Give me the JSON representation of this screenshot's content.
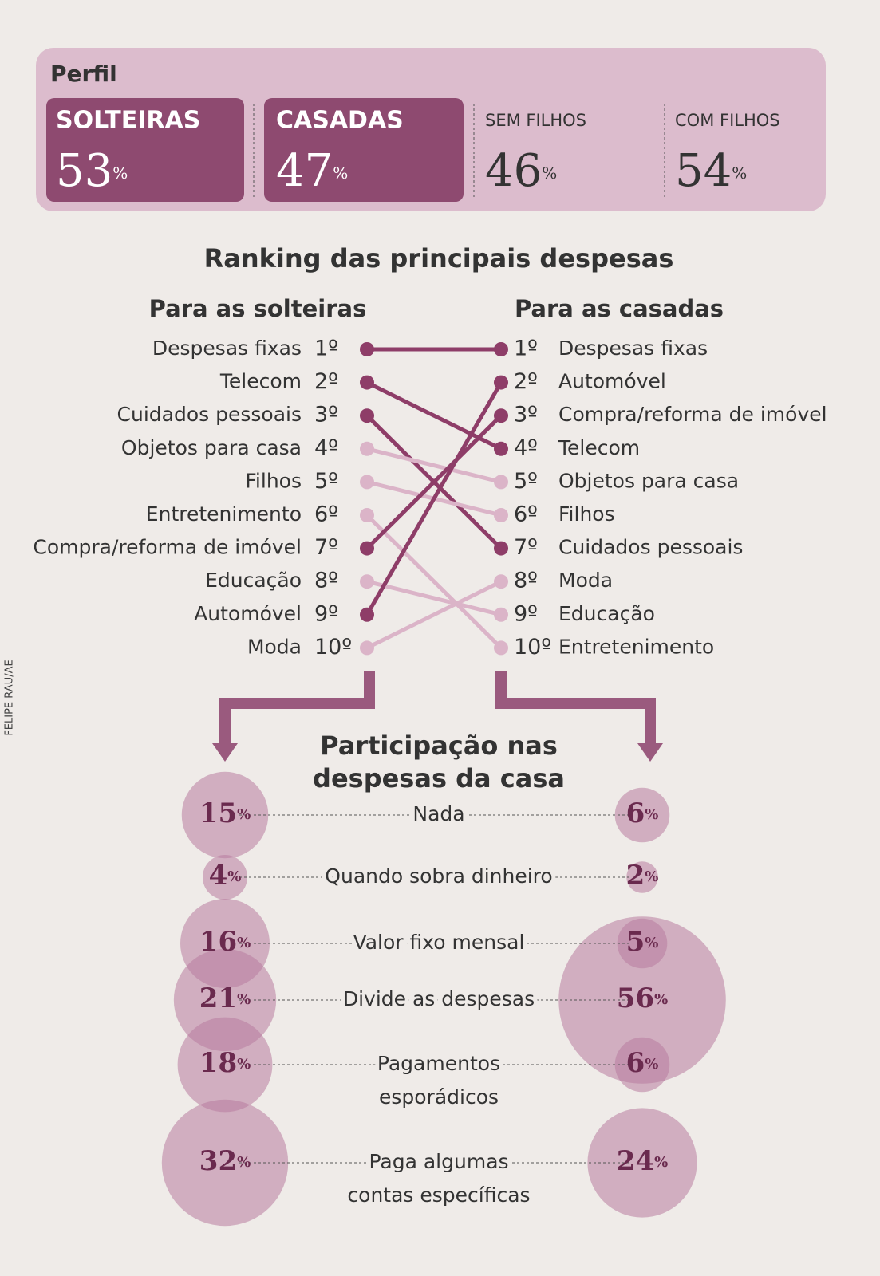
{
  "credit": "FELIPE RAU/AE",
  "profile": {
    "title": "Perfil",
    "unit": "%",
    "items": [
      {
        "label": "SOLTEIRAS",
        "value": 53
      },
      {
        "label": "CASADAS",
        "value": 47
      },
      {
        "label": "SEM FILHOS",
        "value": 46
      },
      {
        "label": "COM FILHOS",
        "value": 54
      }
    ]
  },
  "ranking": {
    "title": "Ranking das principais despesas",
    "left_title": "Para as solteiras",
    "right_title": "Para as casadas",
    "ranks": [
      "1º",
      "2º",
      "3º",
      "4º",
      "5º",
      "6º",
      "7º",
      "8º",
      "9º",
      "10º"
    ],
    "left": [
      {
        "label": "Despesas fixas",
        "color": "#8e3d68"
      },
      {
        "label": "Telecom",
        "color": "#8e3d68"
      },
      {
        "label": "Cuidados pessoais",
        "color": "#8e3d68"
      },
      {
        "label": "Objetos para casa",
        "color": "#dbb4c8"
      },
      {
        "label": "Filhos",
        "color": "#dbb4c8"
      },
      {
        "label": "Entretenimento",
        "color": "#dbb4c8"
      },
      {
        "label": "Compra/reforma de imóvel",
        "color": "#8e3d68"
      },
      {
        "label": "Educação",
        "color": "#dbb4c8"
      },
      {
        "label": "Automóvel",
        "color": "#8e3d68"
      },
      {
        "label": "Moda",
        "color": "#dbb4c8"
      }
    ],
    "right": [
      "Despesas fixas",
      "Automóvel",
      "Compra/reforma de imóvel",
      "Telecom",
      "Objetos para casa",
      "Filhos",
      "Cuidados pessoais",
      "Moda",
      "Educação",
      "Entretenimento"
    ]
  },
  "participation": {
    "title": [
      "Participação nas",
      "despesas da casa"
    ],
    "unit": "%",
    "rows": [
      {
        "label": [
          "Nada"
        ],
        "solteiras": 15,
        "casadas": 6
      },
      {
        "label": [
          "Quando sobra dinheiro"
        ],
        "solteiras": 4,
        "casadas": 2
      },
      {
        "label": [
          "Valor fixo mensal"
        ],
        "solteiras": 16,
        "casadas": 5
      },
      {
        "label": [
          "Divide as despesas"
        ],
        "solteiras": 21,
        "casadas": 56
      },
      {
        "label": [
          "Pagamentos",
          "esporádicos"
        ],
        "solteiras": 18,
        "casadas": 6
      },
      {
        "label": [
          "Paga algumas",
          "contas específicas"
        ],
        "solteiras": 32,
        "casadas": 24
      }
    ]
  }
}
